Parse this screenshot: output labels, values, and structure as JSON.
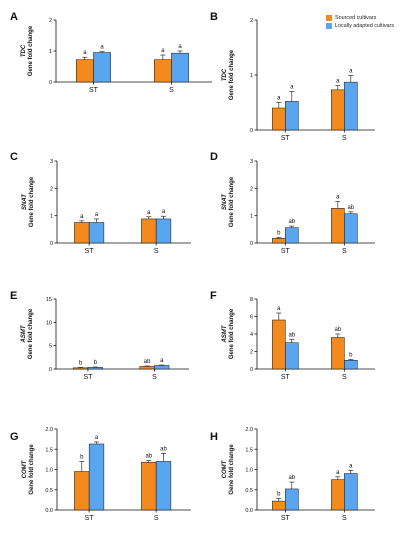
{
  "legend": {
    "entries": [
      {
        "name": "Sourced cultivars",
        "color": "#F28A1E"
      },
      {
        "name": "Locally adapted cultivars",
        "color": "#5AA5F0"
      }
    ]
  },
  "colors": {
    "sourced": "#F28A1E",
    "local": "#5AA5F0",
    "axis": "#111111"
  },
  "chart_data": [
    {
      "panel": "A",
      "type": "bar",
      "ylabel_gene": "TDC",
      "ylabel": "Gene fold change",
      "categories": [
        "ST",
        "S"
      ],
      "ylim": [
        0,
        2
      ],
      "yticks": [
        "0",
        "1",
        "2"
      ],
      "series": [
        {
          "name": "Sourced cultivars",
          "values": [
            0.72,
            0.72
          ],
          "errors": [
            0.08,
            0.15
          ],
          "letters": [
            "a",
            "a"
          ]
        },
        {
          "name": "Locally adapted cultivars",
          "values": [
            0.95,
            0.93
          ],
          "errors": [
            0.03,
            0.07
          ],
          "letters": [
            "a",
            "a"
          ]
        }
      ]
    },
    {
      "panel": "B",
      "type": "bar",
      "ylabel_gene": "TDC",
      "ylabel": "Gene fold change",
      "categories": [
        "ST",
        "S"
      ],
      "ylim": [
        0,
        2
      ],
      "yticks": [
        "0",
        "1",
        "2"
      ],
      "series": [
        {
          "name": "Sourced cultivars",
          "values": [
            0.4,
            0.73
          ],
          "errors": [
            0.1,
            0.08
          ],
          "letters": [
            "a",
            "a"
          ]
        },
        {
          "name": "Locally adapted cultivars",
          "values": [
            0.52,
            0.87
          ],
          "errors": [
            0.18,
            0.12
          ],
          "letters": [
            "a",
            "a"
          ]
        }
      ]
    },
    {
      "panel": "C",
      "type": "bar",
      "ylabel_gene": "SNAT",
      "ylabel": "Gene fold change",
      "categories": [
        "ST",
        "S"
      ],
      "ylim": [
        0,
        3
      ],
      "yticks": [
        "0",
        "1",
        "2",
        "3"
      ],
      "series": [
        {
          "name": "Sourced cultivars",
          "values": [
            0.75,
            0.88
          ],
          "errors": [
            0.06,
            0.08
          ],
          "letters": [
            "a",
            "a"
          ]
        },
        {
          "name": "Locally adapted cultivars",
          "values": [
            0.75,
            0.88
          ],
          "errors": [
            0.13,
            0.1
          ],
          "letters": [
            "a",
            "a"
          ]
        }
      ]
    },
    {
      "panel": "D",
      "type": "bar",
      "ylabel_gene": "SNAT",
      "ylabel": "Gene fold change",
      "categories": [
        "ST",
        "S"
      ],
      "ylim": [
        0,
        3
      ],
      "yticks": [
        "0",
        "1",
        "2",
        "3"
      ],
      "series": [
        {
          "name": "Sourced cultivars",
          "values": [
            0.17,
            1.27
          ],
          "errors": [
            0.03,
            0.25
          ],
          "letters": [
            "b",
            "a"
          ]
        },
        {
          "name": "Locally adapted cultivars",
          "values": [
            0.56,
            1.07
          ],
          "errors": [
            0.06,
            0.07
          ],
          "letters": [
            "ab",
            "ab"
          ]
        }
      ]
    },
    {
      "panel": "E",
      "type": "bar",
      "ylabel_gene": "ASMT",
      "ylabel": "Gene fold change",
      "categories": [
        "ST",
        "S"
      ],
      "ylim": [
        0,
        15
      ],
      "yticks": [
        "0",
        "5",
        "10",
        "15"
      ],
      "series": [
        {
          "name": "Sourced cultivars",
          "values": [
            0.25,
            0.55
          ],
          "errors": [
            0.08,
            0.1
          ],
          "letters": [
            "b",
            "ab"
          ]
        },
        {
          "name": "Locally adapted cultivars",
          "values": [
            0.35,
            0.75
          ],
          "errors": [
            0.08,
            0.1
          ],
          "letters": [
            "b",
            "a"
          ]
        }
      ]
    },
    {
      "panel": "F",
      "type": "bar",
      "ylabel_gene": "ASMT",
      "ylabel": "Gene fold change",
      "categories": [
        "ST",
        "S"
      ],
      "ylim": [
        0,
        8
      ],
      "yticks": [
        "0",
        "2",
        "4",
        "6",
        "8"
      ],
      "series": [
        {
          "name": "Sourced cultivars",
          "values": [
            5.6,
            3.6
          ],
          "errors": [
            0.8,
            0.4
          ],
          "letters": [
            "a",
            "ab"
          ]
        },
        {
          "name": "Locally adapted cultivars",
          "values": [
            3.0,
            1.0
          ],
          "errors": [
            0.4,
            0.1
          ],
          "letters": [
            "ab",
            "b"
          ]
        }
      ]
    },
    {
      "panel": "G",
      "type": "bar",
      "ylabel_gene": "COMT",
      "ylabel": "Gene fold change",
      "categories": [
        "ST",
        "S"
      ],
      "ylim": [
        0,
        2.0
      ],
      "yticks": [
        "0.0",
        "0.5",
        "1.0",
        "1.5",
        "2.0"
      ],
      "series": [
        {
          "name": "Sourced cultivars",
          "values": [
            0.95,
            1.18
          ],
          "errors": [
            0.25,
            0.04
          ],
          "letters": [
            "b",
            "ab"
          ]
        },
        {
          "name": "Locally adapted cultivars",
          "values": [
            1.63,
            1.2
          ],
          "errors": [
            0.05,
            0.2
          ],
          "letters": [
            "a",
            "ab"
          ]
        }
      ]
    },
    {
      "panel": "H",
      "type": "bar",
      "ylabel_gene": "COMT",
      "ylabel": "Gene fold change",
      "categories": [
        "ST",
        "S"
      ],
      "ylim": [
        0,
        2.0
      ],
      "yticks": [
        "0.0",
        "0.5",
        "1.0",
        "1.5",
        "2.0"
      ],
      "series": [
        {
          "name": "Sourced cultivars",
          "values": [
            0.22,
            0.75
          ],
          "errors": [
            0.07,
            0.07
          ],
          "letters": [
            "b",
            "a"
          ]
        },
        {
          "name": "Locally adapted cultivars",
          "values": [
            0.52,
            0.9
          ],
          "errors": [
            0.17,
            0.08
          ],
          "letters": [
            "ab",
            "a"
          ]
        }
      ]
    }
  ]
}
